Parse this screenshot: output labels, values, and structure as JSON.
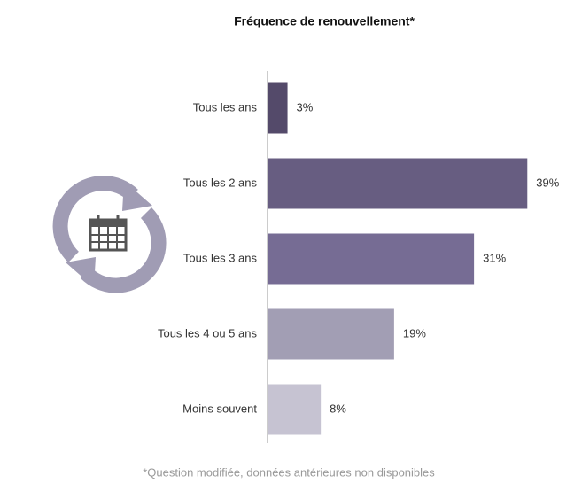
{
  "chart_data": {
    "type": "bar",
    "orientation": "horizontal",
    "title": "Fréquence de renouvellement*",
    "categories": [
      "Tous les ans",
      "Tous les 2 ans",
      "Tous les 3 ans",
      "Tous les 4 ou 5 ans",
      "Moins souvent"
    ],
    "values": [
      3,
      39,
      31,
      19,
      8
    ],
    "value_labels": [
      "3%",
      "39%",
      "31%",
      "19%",
      "8%"
    ],
    "colors": [
      "#544a6a",
      "#675d81",
      "#766c94",
      "#a29eb4",
      "#c6c3d2"
    ],
    "footnote": "*Question modifiée, données antérieures non disponibles"
  }
}
